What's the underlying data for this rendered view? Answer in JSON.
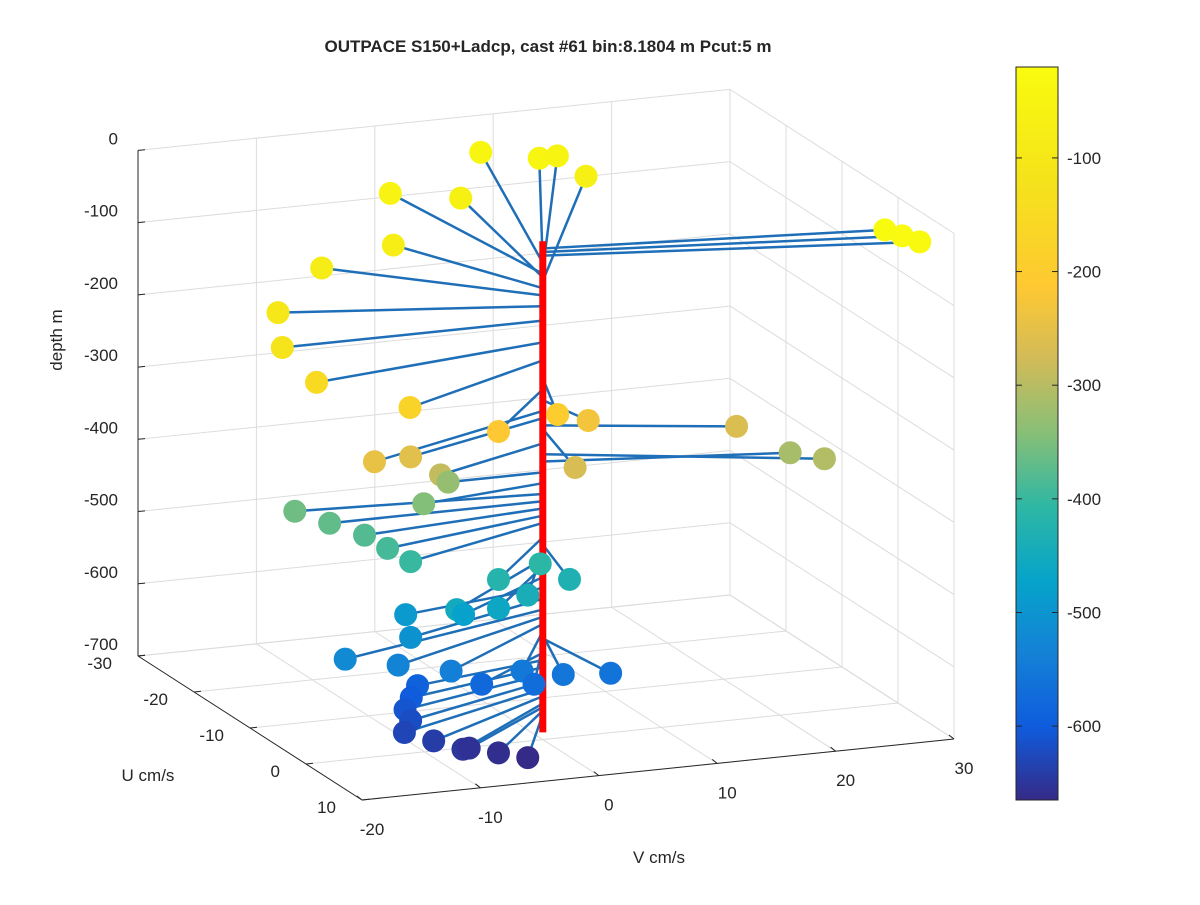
{
  "chart_data": {
    "type": "3d-stem-scatter",
    "title": "OUTPACE S150+Ladcp, cast #61 bin:8.1804 m  Pcut:5 m",
    "axes": {
      "z": {
        "label": "depth m",
        "range": [
          -700,
          0
        ],
        "ticks": [
          "0",
          "-100",
          "-200",
          "-300",
          "-400",
          "-500",
          "-600",
          "-700"
        ]
      },
      "u": {
        "label": "U cm/s",
        "range": [
          -30,
          10
        ],
        "ticks": [
          "-30",
          "-20",
          "-10",
          "0",
          "10"
        ]
      },
      "v": {
        "label": "V cm/s",
        "range": [
          -20,
          30
        ],
        "ticks": [
          "-20",
          "-10",
          "0",
          "10",
          "20",
          "30"
        ]
      }
    },
    "grid": true,
    "colorbar": {
      "colormap": "parula",
      "range": [
        -665,
        -20
      ],
      "ticks": [
        "-100",
        "-200",
        "-300",
        "-400",
        "-500",
        "-600"
      ],
      "position": "right"
    },
    "stem_color": "#1f6fb8",
    "profile_line_color": "#ff0000",
    "profile_depth_range": [
      -690,
      -10
    ],
    "points": [
      {
        "depth": -20,
        "u": 4,
        "v": 27
      },
      {
        "depth": -25,
        "u": 5,
        "v": 28
      },
      {
        "depth": -30,
        "u": 6,
        "v": 29
      },
      {
        "depth": -40,
        "u": -28,
        "v": 8
      },
      {
        "depth": -45,
        "u": -26,
        "v": 12
      },
      {
        "depth": -50,
        "u": -27,
        "v": 14
      },
      {
        "depth": -55,
        "u": -23,
        "v": -2
      },
      {
        "depth": -60,
        "u": -21,
        "v": 3
      },
      {
        "depth": -65,
        "u": -24,
        "v": 15
      },
      {
        "depth": -75,
        "u": -14,
        "v": -6
      },
      {
        "depth": -85,
        "u": -12,
        "v": -13
      },
      {
        "depth": -100,
        "u": -5,
        "v": -20
      },
      {
        "depth": -120,
        "u": 0,
        "v": -22
      },
      {
        "depth": -150,
        "u": 4,
        "v": -21
      },
      {
        "depth": -175,
        "u": 8,
        "v": -15
      },
      {
        "depth": -200,
        "u": 9,
        "v": -3
      },
      {
        "depth": -215,
        "u": 9,
        "v": -8
      },
      {
        "depth": -230,
        "u": 6,
        "v": 1
      },
      {
        "depth": -245,
        "u": 8,
        "v": -18
      },
      {
        "depth": -255,
        "u": 6,
        "v": -14
      },
      {
        "depth": -265,
        "u": 5,
        "v": 14
      },
      {
        "depth": -270,
        "u": 10,
        "v": -2
      },
      {
        "depth": -290,
        "u": 5,
        "v": -11
      },
      {
        "depth": -305,
        "u": 8,
        "v": 20
      },
      {
        "depth": -315,
        "u": 4,
        "v": 19
      },
      {
        "depth": -330,
        "u": 0,
        "v": -8
      },
      {
        "depth": -345,
        "u": 2,
        "v": -11
      },
      {
        "depth": -360,
        "u": -2,
        "v": -20
      },
      {
        "depth": -370,
        "u": 0,
        "v": -18
      },
      {
        "depth": -380,
        "u": 2,
        "v": -16
      },
      {
        "depth": -390,
        "u": 4,
        "v": -15
      },
      {
        "depth": -400,
        "u": 6,
        "v": -14
      },
      {
        "depth": -410,
        "u": 8,
        "v": -4
      },
      {
        "depth": -420,
        "u": 9,
        "v": -8
      },
      {
        "depth": -430,
        "u": 9,
        "v": -2
      },
      {
        "depth": -440,
        "u": 10,
        "v": -6
      },
      {
        "depth": -450,
        "u": 10,
        "v": -12
      },
      {
        "depth": -460,
        "u": 9,
        "v": -8
      },
      {
        "depth": -475,
        "u": 7,
        "v": -10
      },
      {
        "depth": -490,
        "u": 3,
        "v": -13
      },
      {
        "depth": -505,
        "u": 6,
        "v": -14
      },
      {
        "depth": -520,
        "u": 7,
        "v": -20
      },
      {
        "depth": -530,
        "u": 8,
        "v": -16
      },
      {
        "depth": -540,
        "u": 9,
        "v": -12
      },
      {
        "depth": -550,
        "u": 9,
        "v": -6
      },
      {
        "depth": -555,
        "u": 10,
        "v": -3
      },
      {
        "depth": -560,
        "u": 10,
        "v": 1
      },
      {
        "depth": -570,
        "u": 9,
        "v": -5
      },
      {
        "depth": -580,
        "u": 6,
        "v": -8
      },
      {
        "depth": -590,
        "u": 3,
        "v": -12
      },
      {
        "depth": -600,
        "u": 4,
        "v": -13
      },
      {
        "depth": -610,
        "u": 5,
        "v": -14
      },
      {
        "depth": -620,
        "u": 6,
        "v": -14
      },
      {
        "depth": -630,
        "u": 7,
        "v": -15
      },
      {
        "depth": -640,
        "u": 8,
        "v": -13
      },
      {
        "depth": -650,
        "u": 9,
        "v": -11
      },
      {
        "depth": -655,
        "u": 8,
        "v": -10
      },
      {
        "depth": -660,
        "u": 9,
        "v": -8
      },
      {
        "depth": -665,
        "u": 10,
        "v": -6
      }
    ]
  }
}
